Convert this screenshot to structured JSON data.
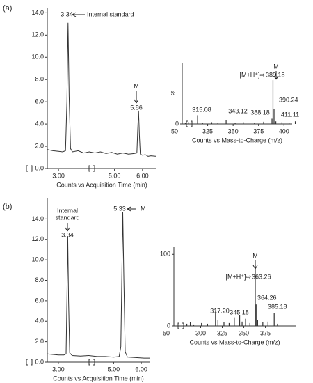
{
  "panel_labels": [
    "(a)",
    "(b)"
  ],
  "chart_data": [
    {
      "type": "line",
      "xlabel": "Counts vs Acquisition Time (min)",
      "color": "#333333",
      "x": [
        2.6,
        2.8,
        3.0,
        3.15,
        3.25,
        3.3,
        3.34,
        3.38,
        3.43,
        3.5,
        3.7,
        3.9,
        4.1,
        4.3,
        4.5,
        4.7,
        4.9,
        5.1,
        5.3,
        5.5,
        5.7,
        5.8,
        5.83,
        5.86,
        5.89,
        5.92,
        6.0,
        6.1,
        6.2,
        6.3,
        6.5
      ],
      "values": [
        1.7,
        1.6,
        1.55,
        1.5,
        1.6,
        6.0,
        13.1,
        6.5,
        1.8,
        1.5,
        1.6,
        1.4,
        1.5,
        1.4,
        1.5,
        1.35,
        1.45,
        1.3,
        1.4,
        1.3,
        1.35,
        1.4,
        3.5,
        5.2,
        3.0,
        1.3,
        1.2,
        1.25,
        1.1,
        1.15,
        1.1
      ],
      "xlim": [
        2.6,
        6.5
      ],
      "ylim": [
        0,
        14.4
      ],
      "xticks": [
        {
          "value": 3,
          "label": "3.00"
        },
        {
          "value": 5,
          "label": "5.00"
        },
        {
          "value": 6,
          "label": "6.00"
        }
      ],
      "yticks": [
        {
          "value": 0,
          "label": "0.0"
        },
        {
          "value": 2,
          "label": "2.0"
        },
        {
          "value": 4,
          "label": "4.0"
        },
        {
          "value": 6,
          "label": "6.0"
        },
        {
          "value": 8,
          "label": "8.0"
        },
        {
          "value": 10,
          "label": "10.0"
        },
        {
          "value": 12,
          "label": "12.0"
        },
        {
          "value": 14,
          "label": "14.0"
        }
      ],
      "annotations": [
        "3.34",
        "Internal standard",
        "M",
        "5.86"
      ]
    },
    {
      "type": "bar",
      "xlabel": "Counts vs Mass-to-Charge (m/z)",
      "ylabel": "%",
      "color": "#333333",
      "axis_break_label": "50",
      "x": [
        303,
        306,
        315.08,
        320,
        329,
        335,
        343.12,
        352,
        360,
        371,
        380,
        388.18,
        389.18,
        390.24,
        392,
        398,
        405,
        411.11
      ],
      "values": [
        3,
        4,
        20,
        3,
        4,
        2,
        8,
        3,
        4,
        3,
        5,
        12,
        100,
        35,
        6,
        4,
        3,
        6
      ],
      "xlim": [
        300,
        408
      ],
      "ylim": [
        0,
        140
      ],
      "xticks": [
        325,
        350,
        375,
        400
      ],
      "yticks": [
        0
      ],
      "annotations": [
        "M",
        "[M+H⁺]⇨",
        "389.18",
        "315.08",
        "343.12",
        "388.18",
        "390.24",
        "411.11"
      ]
    },
    {
      "type": "line",
      "xlabel": "Counts vs Acquisition Time (min)",
      "color": "#333333",
      "x": [
        2.6,
        2.8,
        3.0,
        3.2,
        3.28,
        3.31,
        3.34,
        3.37,
        3.41,
        3.5,
        3.8,
        4.1,
        4.4,
        4.7,
        5.0,
        5.2,
        5.26,
        5.3,
        5.33,
        5.37,
        5.42,
        5.5,
        5.8,
        6.1,
        6.3
      ],
      "values": [
        0.8,
        0.75,
        0.7,
        0.7,
        0.8,
        6.0,
        12.3,
        6.0,
        0.9,
        0.65,
        0.6,
        0.65,
        0.55,
        0.55,
        0.5,
        0.55,
        1.5,
        9.0,
        14.7,
        8.0,
        1.0,
        0.5,
        0.45,
        0.4,
        0.4
      ],
      "xlim": [
        2.6,
        6.3
      ],
      "ylim": [
        0,
        16
      ],
      "xticks": [
        {
          "value": 3,
          "label": "3.00"
        },
        {
          "value": 5,
          "label": "5.00"
        },
        {
          "value": 6,
          "label": "6.00"
        }
      ],
      "yticks": [
        {
          "value": 0,
          "label": "0.0"
        },
        {
          "value": 2,
          "label": "2.0"
        },
        {
          "value": 4,
          "label": "4.0"
        },
        {
          "value": 6,
          "label": "6.0"
        },
        {
          "value": 8,
          "label": "8.0"
        },
        {
          "value": 10,
          "label": "10.0"
        },
        {
          "value": 12,
          "label": "12.0"
        },
        {
          "value": 14,
          "label": "14.0"
        }
      ],
      "annotations": [
        "Internal",
        "standard",
        "3.34",
        "5.33",
        "M"
      ]
    },
    {
      "type": "bar",
      "xlabel": "Counts vs Mass-to-Charge (m/z)",
      "color": "#333333",
      "axis_break_label": "50",
      "x": [
        284,
        288,
        292,
        301,
        308,
        317.2,
        320,
        327,
        333,
        339,
        345.18,
        348,
        352,
        357,
        363.26,
        364.26,
        366,
        372,
        378,
        385.18,
        389
      ],
      "values": [
        3,
        5,
        2,
        4,
        3,
        20,
        8,
        5,
        4,
        12,
        15,
        6,
        10,
        4,
        85,
        30,
        8,
        5,
        6,
        18,
        3
      ],
      "xlim": [
        269,
        410
      ],
      "ylim": [
        0,
        110
      ],
      "xticks": [
        300,
        325,
        350,
        375
      ],
      "yticks": [
        0,
        100
      ],
      "annotations": [
        "M",
        "[M+H⁺]⇨",
        "363.26",
        "364.26",
        "317.20",
        "345.18",
        "385.18"
      ]
    }
  ]
}
